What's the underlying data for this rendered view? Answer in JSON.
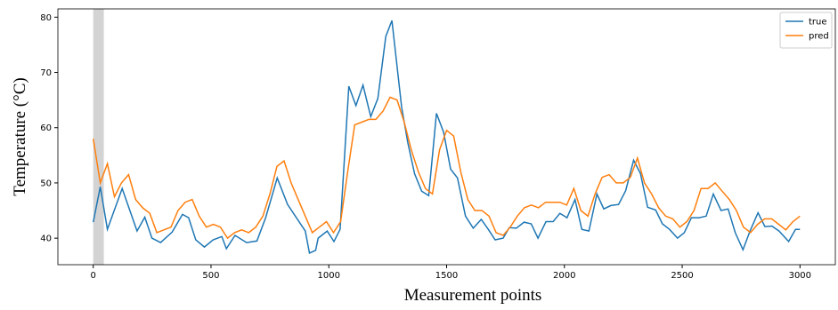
{
  "chart_data": {
    "type": "line",
    "xlabel": "Measurement points",
    "ylabel": "Temperature (°C)",
    "xlim": [
      -150,
      3150
    ],
    "xticks": [
      0,
      500,
      1000,
      1500,
      2000,
      2500,
      3000
    ],
    "ylim": [
      35.2,
      81.5
    ],
    "yticks": [
      40,
      50,
      60,
      70,
      80
    ],
    "axvspan": [
      0,
      45
    ],
    "axvspan_color": "#d3d3d3",
    "legend": "upper right",
    "grid": false,
    "series": [
      {
        "name": "true",
        "color": "#1f77b4",
        "x": [
          0,
          30,
          60,
          123,
          186,
          219,
          249,
          286,
          335,
          379,
          405,
          435,
          472,
          509,
          546,
          565,
          602,
          651,
          695,
          732,
          781,
          825,
          900,
          918,
          944,
          955,
          993,
          1022,
          1048,
          1085,
          1115,
          1145,
          1178,
          1208,
          1242,
          1268,
          1309,
          1335,
          1364,
          1394,
          1424,
          1457,
          1487,
          1517,
          1546,
          1580,
          1613,
          1647,
          1677,
          1706,
          1740,
          1766,
          1796,
          1829,
          1859,
          1888,
          1922,
          1952,
          1981,
          2011,
          2045,
          2074,
          2104,
          2138,
          2167,
          2197,
          2230,
          2260,
          2294,
          2323,
          2353,
          2387,
          2416,
          2446,
          2480,
          2509,
          2539,
          2572,
          2602,
          2632,
          2665,
          2695,
          2725,
          2758,
          2788,
          2822,
          2851,
          2881,
          2911,
          2952,
          2981,
          3000
        ],
        "values": [
          42.9,
          49.3,
          41.6,
          49,
          41.3,
          43.8,
          40,
          39.2,
          41.1,
          44.3,
          43.7,
          39.7,
          38.4,
          39.7,
          40.3,
          38.1,
          40.5,
          39.2,
          39.5,
          43.7,
          50.9,
          46.1,
          41.3,
          37.3,
          37.8,
          40,
          41.3,
          39.4,
          41.6,
          67.5,
          64,
          67.7,
          62,
          65.3,
          76.5,
          79.4,
          63.7,
          57.3,
          51.7,
          48.5,
          47.7,
          62.6,
          59.2,
          52.5,
          50.9,
          44,
          41.8,
          43.4,
          41.6,
          39.7,
          40,
          41.9,
          41.8,
          42.9,
          42.6,
          40,
          43,
          43,
          44.5,
          43.7,
          47,
          41.6,
          41.3,
          48,
          45.3,
          45.9,
          46.1,
          48.6,
          54.1,
          51.7,
          45.6,
          45.1,
          42.6,
          41.6,
          40,
          41,
          43.7,
          43.7,
          44,
          48,
          45,
          45.3,
          41,
          37.9,
          41.3,
          44.6,
          42.1,
          42.2,
          41.3,
          39.4,
          41.6,
          41.6
        ]
      },
      {
        "name": "pred",
        "color": "#ff7f0e",
        "x": [
          0,
          30,
          60,
          90,
          120,
          150,
          180,
          210,
          240,
          270,
          300,
          330,
          360,
          390,
          420,
          450,
          480,
          510,
          540,
          570,
          600,
          630,
          660,
          690,
          720,
          750,
          780,
          810,
          840,
          870,
          900,
          930,
          960,
          990,
          1020,
          1050,
          1080,
          1110,
          1140,
          1170,
          1200,
          1230,
          1260,
          1290,
          1320,
          1350,
          1380,
          1410,
          1440,
          1470,
          1500,
          1530,
          1560,
          1590,
          1620,
          1650,
          1680,
          1710,
          1740,
          1770,
          1800,
          1830,
          1860,
          1890,
          1920,
          1950,
          1980,
          2010,
          2040,
          2070,
          2100,
          2130,
          2160,
          2190,
          2220,
          2250,
          2280,
          2310,
          2340,
          2370,
          2400,
          2430,
          2460,
          2490,
          2520,
          2550,
          2580,
          2610,
          2640,
          2670,
          2700,
          2730,
          2760,
          2790,
          2820,
          2850,
          2880,
          2910,
          2940,
          2970,
          3000
        ],
        "values": [
          58,
          50,
          53.5,
          47.5,
          50,
          51.5,
          47,
          45.5,
          44.5,
          41,
          41.5,
          42,
          45,
          46.5,
          47,
          44,
          42,
          42.5,
          42,
          40,
          41,
          41.5,
          41,
          42,
          44,
          48,
          53,
          54,
          50,
          47,
          44,
          41,
          42,
          43,
          41,
          43,
          52,
          60.5,
          61,
          61.5,
          61.5,
          63,
          65.5,
          65,
          61,
          56,
          52,
          49,
          48,
          56,
          59.5,
          58.5,
          52,
          47,
          45,
          45,
          44,
          41,
          40.5,
          42,
          44,
          45.5,
          46,
          45.5,
          46.5,
          46.5,
          46.5,
          46,
          49,
          45,
          44,
          48,
          51,
          51.5,
          50,
          50,
          51,
          54.5,
          50,
          48,
          45.5,
          44,
          43.5,
          42,
          43,
          45,
          49,
          49,
          50,
          48.5,
          47,
          45,
          42,
          41,
          42.5,
          43.5,
          43.5,
          42.5,
          41.5,
          43,
          44
        ]
      }
    ]
  }
}
